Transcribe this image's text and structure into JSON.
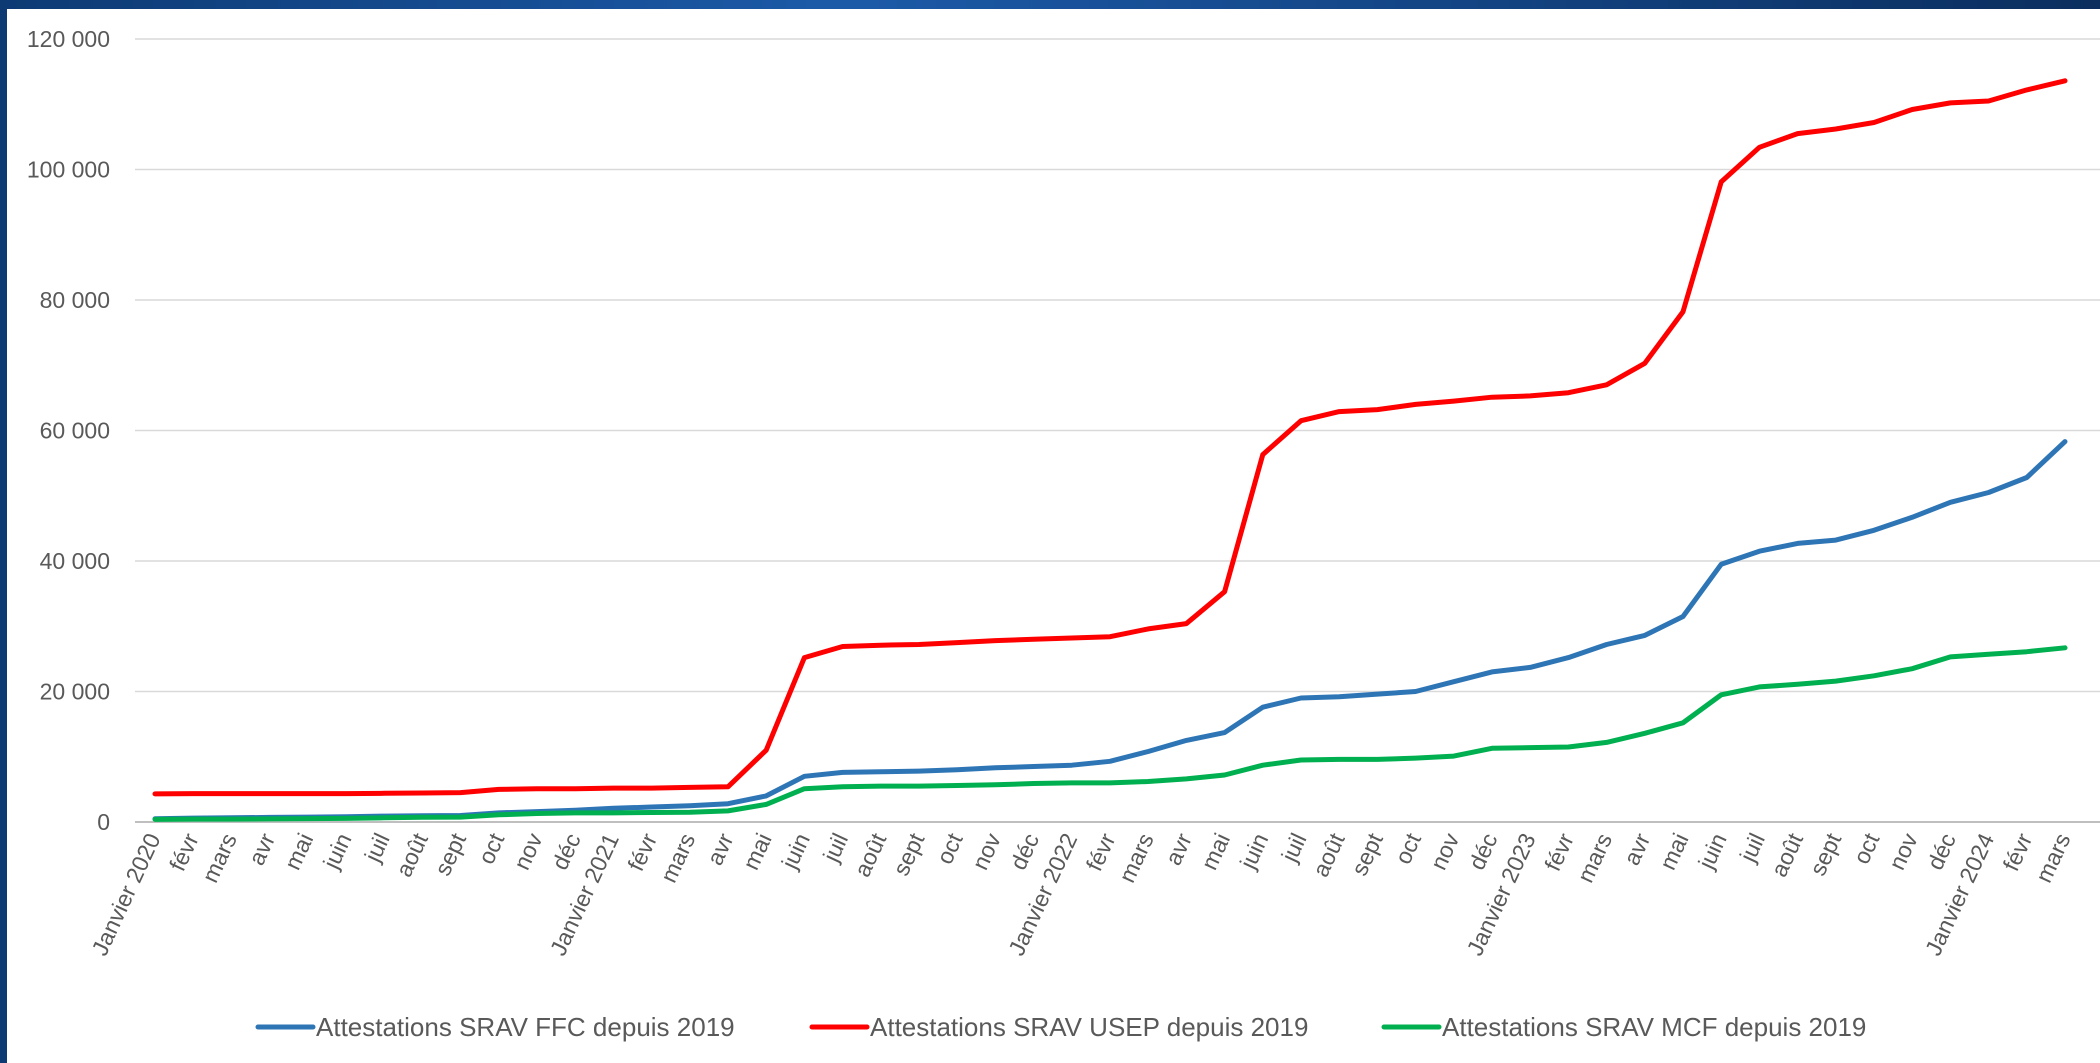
{
  "chart_data": {
    "type": "line",
    "title": "",
    "xlabel": "",
    "ylabel": "",
    "ylim": [
      0,
      120000
    ],
    "y_ticks": [
      0,
      20000,
      40000,
      60000,
      80000,
      100000,
      120000
    ],
    "y_tick_labels": [
      "0",
      "20 000",
      "40 000",
      "60 000",
      "80 000",
      "100 000",
      "120 000"
    ],
    "grid": "horizontal",
    "legend_position": "bottom",
    "categories": [
      "Janvier 2020",
      "févr",
      "mars",
      "avr",
      "mai",
      "juin",
      "juil",
      "août",
      "sept",
      "oct",
      "nov",
      "déc",
      "Janvier 2021",
      "févr",
      "mars",
      "avr",
      "mai",
      "juin",
      "juil",
      "août",
      "sept",
      "oct",
      "nov",
      "déc",
      "Janvier 2022",
      "févr",
      "mars",
      "avr",
      "mai",
      "juin",
      "juil",
      "août",
      "sept",
      "oct",
      "nov",
      "déc",
      "Janvier 2023",
      "févr",
      "mars",
      "avr",
      "mai",
      "juin",
      "juil",
      "août",
      "sept",
      "oct",
      "nov",
      "déc",
      "Janvier 2024",
      "févr",
      "mars"
    ],
    "series": [
      {
        "name": "Attestations SRAV FFC depuis 2019",
        "color": "#2e75b6",
        "values": [
          500,
          600,
          650,
          700,
          750,
          800,
          900,
          950,
          1000,
          1400,
          1600,
          1800,
          2100,
          2300,
          2500,
          2800,
          4000,
          7000,
          7600,
          7700,
          7800,
          8000,
          8300,
          8500,
          8700,
          9300,
          10800,
          12500,
          13700,
          17600,
          19000,
          19200,
          19600,
          20000,
          21500,
          23000,
          23700,
          25200,
          27200,
          28600,
          31500,
          39500,
          41500,
          42700,
          43200,
          44700,
          46700,
          49000,
          50500,
          52800,
          58300
        ]
      },
      {
        "name": "Attestations SRAV USEP depuis 2019",
        "color": "#ff0000",
        "values": [
          4300,
          4350,
          4350,
          4350,
          4350,
          4350,
          4400,
          4450,
          4500,
          5000,
          5100,
          5100,
          5200,
          5200,
          5300,
          5400,
          11000,
          25200,
          26900,
          27100,
          27200,
          27500,
          27800,
          28000,
          28200,
          28400,
          29600,
          30400,
          35300,
          56300,
          61500,
          62900,
          63200,
          64000,
          64500,
          65100,
          65300,
          65800,
          67000,
          70300,
          78200,
          98100,
          103400,
          105500,
          106200,
          107200,
          109200,
          110200,
          110500,
          112200,
          113600
        ]
      },
      {
        "name": "Attestations SRAV MCF depuis 2019",
        "color": "#00b050",
        "values": [
          400,
          450,
          450,
          480,
          520,
          550,
          650,
          720,
          750,
          1100,
          1300,
          1400,
          1400,
          1450,
          1500,
          1700,
          2700,
          5100,
          5400,
          5500,
          5500,
          5600,
          5700,
          5900,
          6000,
          6000,
          6200,
          6600,
          7200,
          8700,
          9500,
          9600,
          9600,
          9800,
          10100,
          11300,
          11400,
          11500,
          12200,
          13600,
          15200,
          19500,
          20700,
          21100,
          21600,
          22400,
          23500,
          25300,
          25700,
          26100,
          26700
        ]
      }
    ]
  }
}
